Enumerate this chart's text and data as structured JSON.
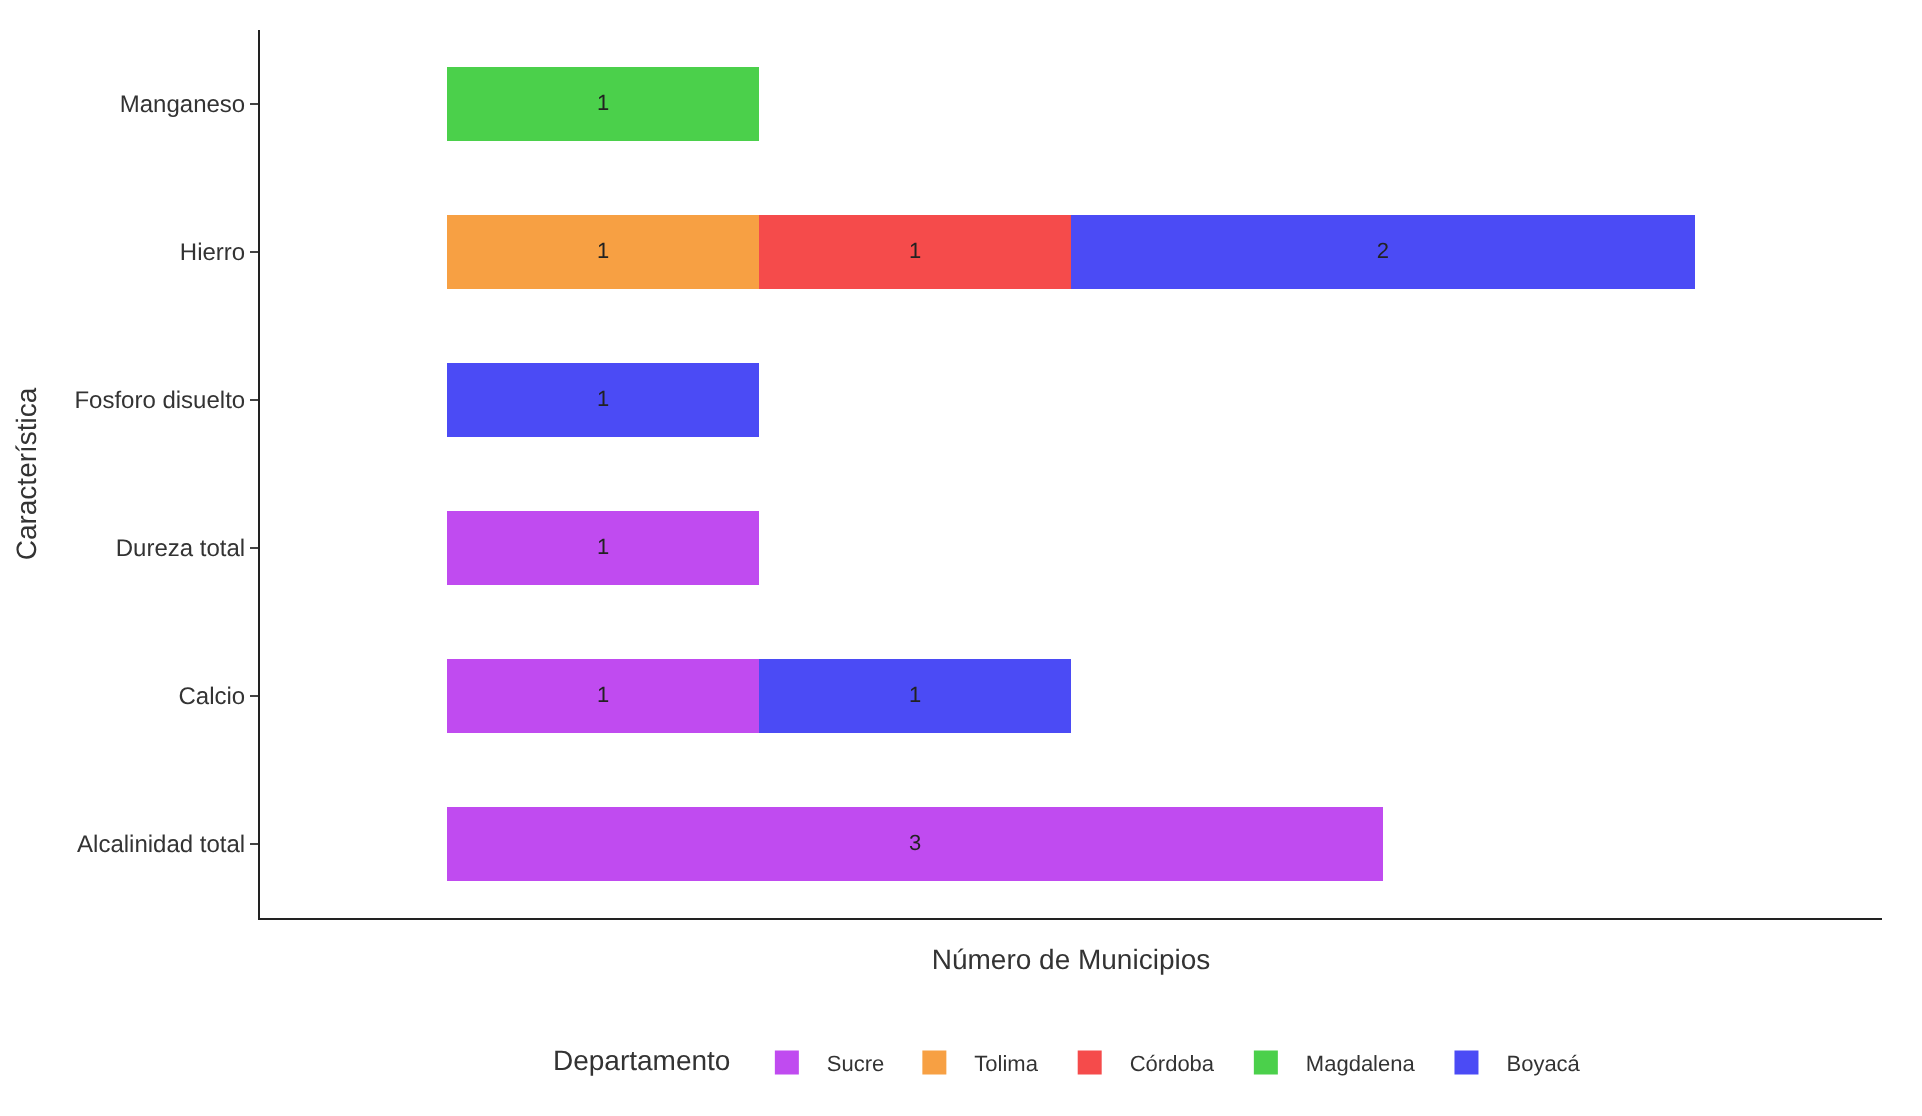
{
  "chart_data": {
    "type": "bar",
    "orientation": "horizontal",
    "stacked": true,
    "data_labels": true,
    "categories": [
      "Manganeso",
      "Hierro",
      "Fosforo disuelto",
      "Dureza total",
      "Calcio",
      "Alcalinidad total"
    ],
    "series": [
      {
        "name": "Sucre",
        "color": "#c04bf0",
        "values": [
          null,
          null,
          null,
          1,
          1,
          3
        ]
      },
      {
        "name": "Tolima",
        "color": "#f7a043",
        "values": [
          null,
          1,
          null,
          null,
          null,
          null
        ]
      },
      {
        "name": "Córdoba",
        "color": "#f54b4b",
        "values": [
          null,
          1,
          null,
          null,
          null,
          null
        ]
      },
      {
        "name": "Magdalena",
        "color": "#4bd04b",
        "values": [
          1,
          null,
          null,
          null,
          null,
          null
        ]
      },
      {
        "name": "Boyacá",
        "color": "#4b4bf5",
        "values": [
          null,
          2,
          1,
          null,
          1,
          null
        ]
      }
    ],
    "xlim": [
      -0.6,
      4.6
    ],
    "tick_labels": "y",
    "legend": "bottom",
    "xlabel": "Número de Municipios",
    "ylabel": "Característica",
    "legend_title": "Departamento"
  }
}
